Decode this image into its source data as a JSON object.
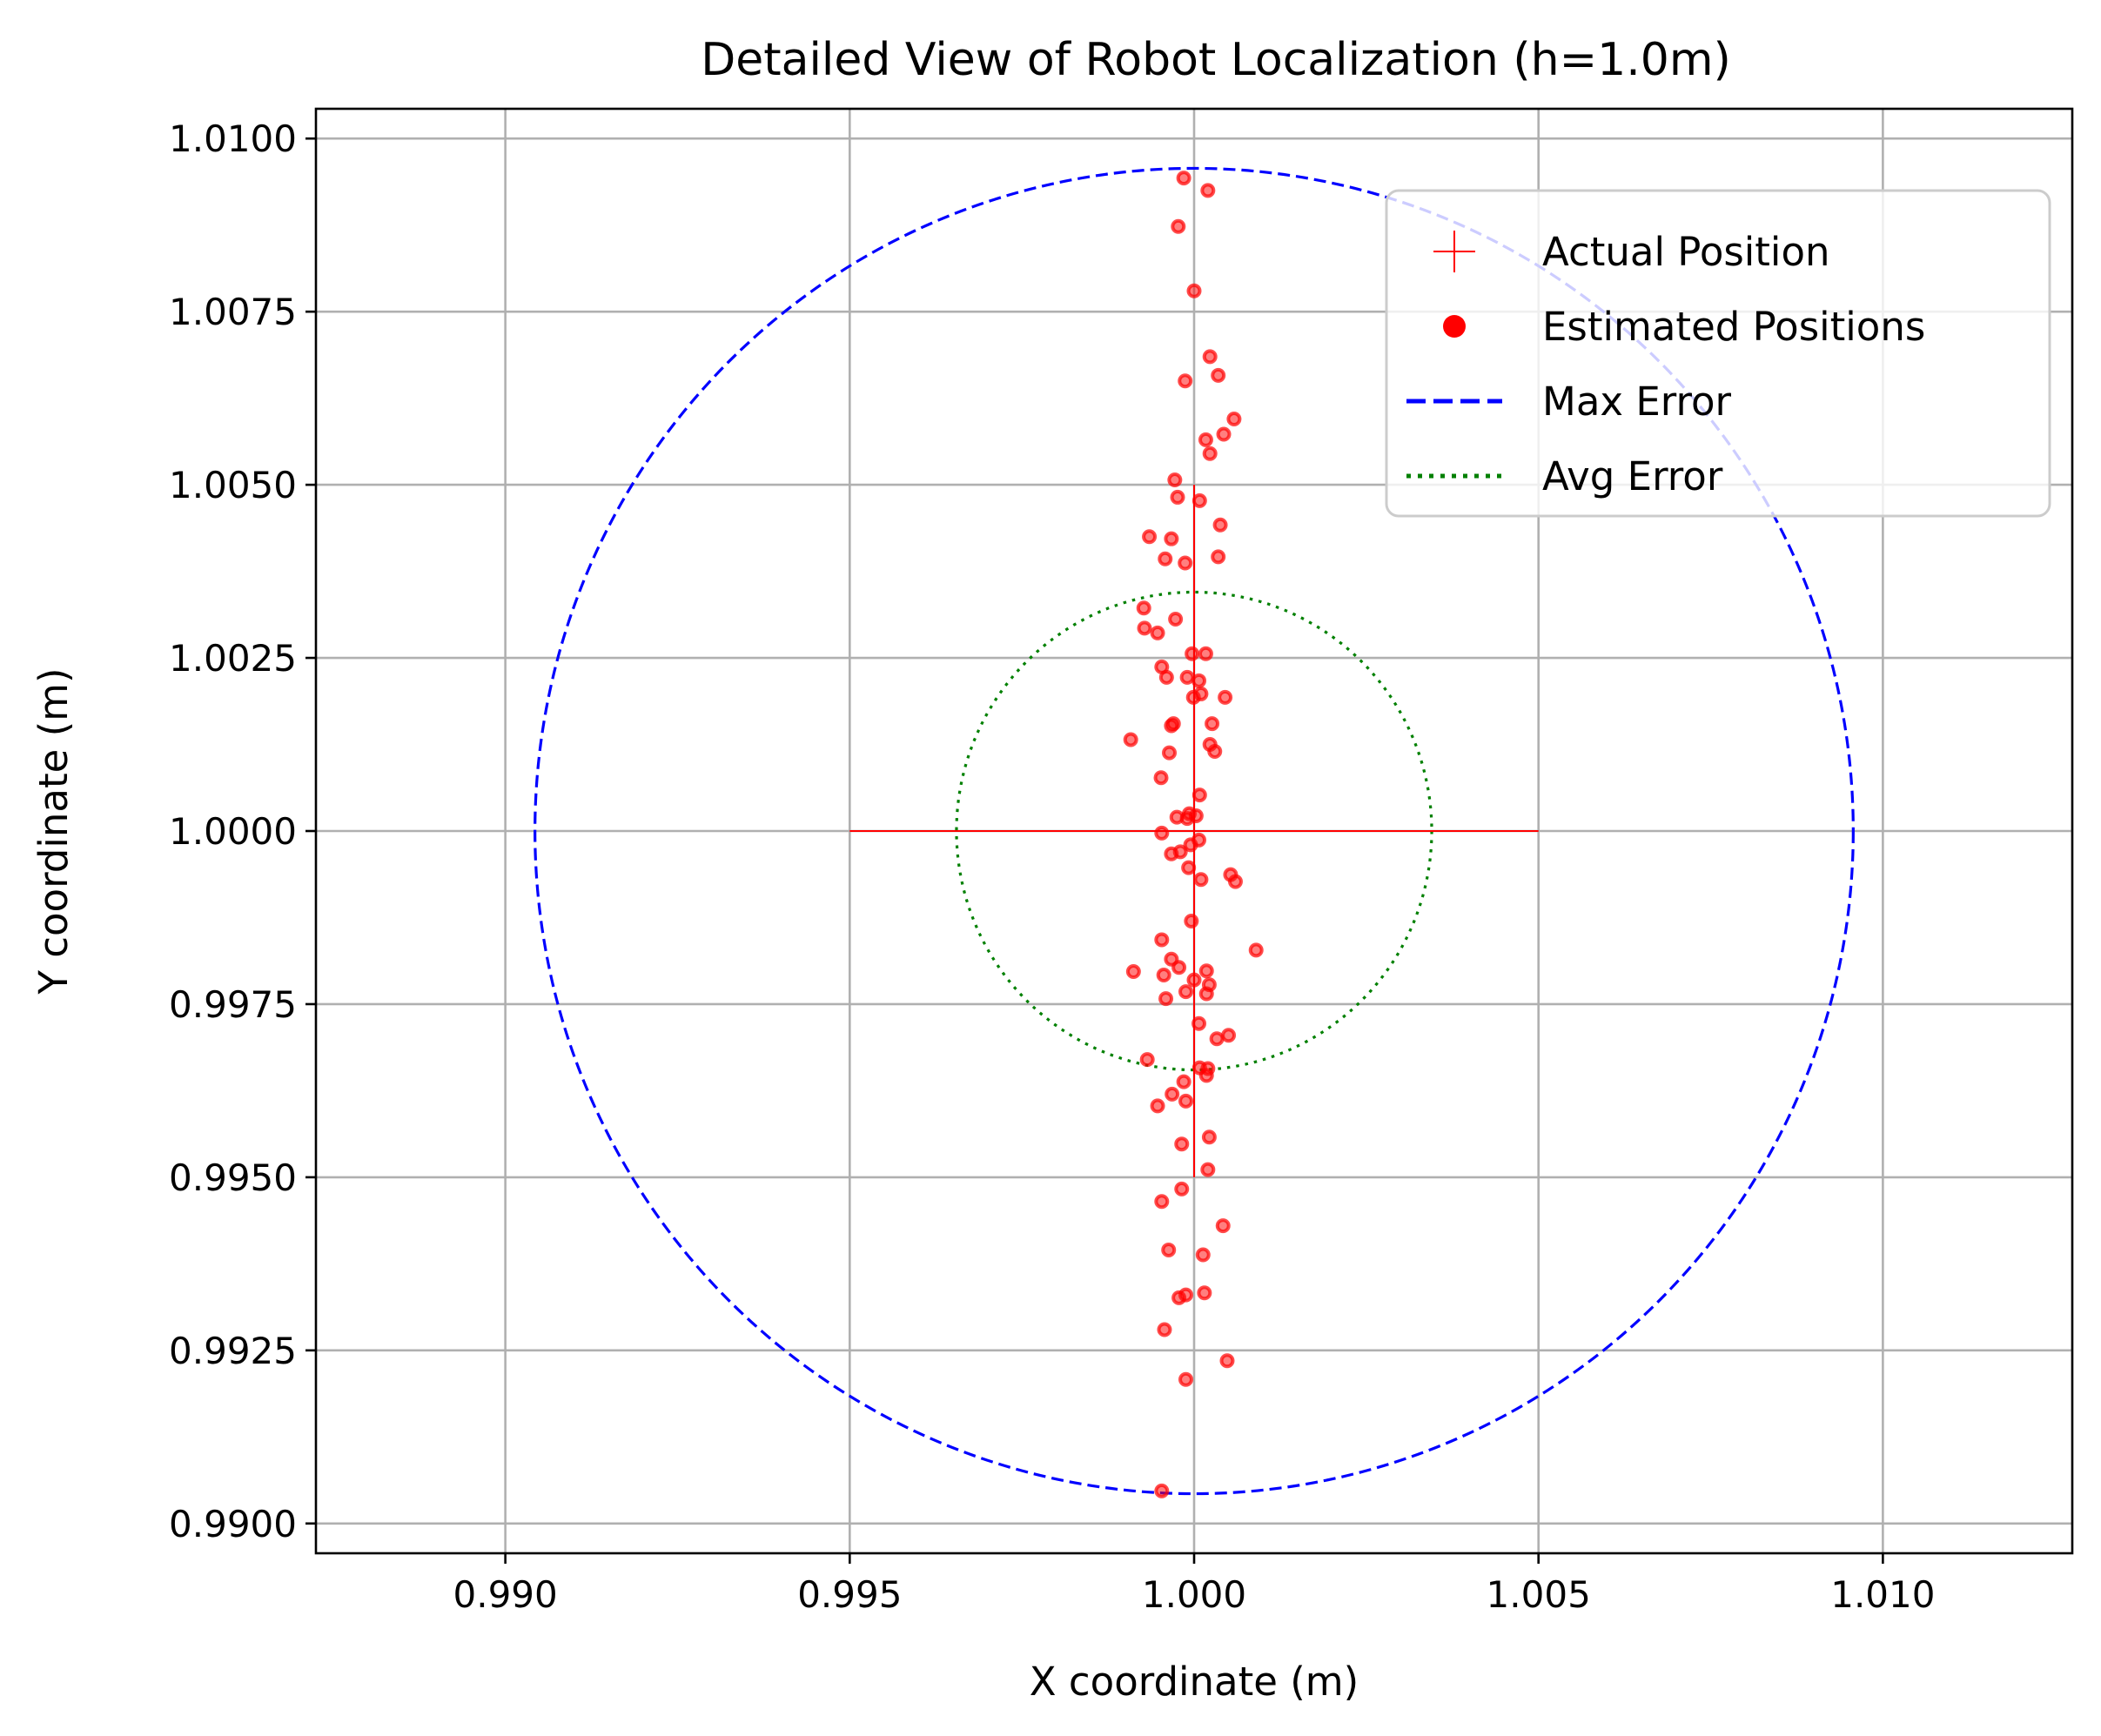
{
  "chart_data": {
    "type": "scatter",
    "title": "Detailed View of Robot Localization (h=1.0m)",
    "xlabel": "X coordinate (m)",
    "ylabel": "Y coordinate (m)",
    "xlim": [
      0.98725,
      1.01275
    ],
    "ylim": [
      0.98957,
      1.01043
    ],
    "xticks": [
      0.99,
      0.995,
      1.0,
      1.005,
      1.01
    ],
    "xtick_labels": [
      "0.990",
      "0.995",
      "1.000",
      "1.005",
      "1.010"
    ],
    "yticks": [
      0.99,
      0.9925,
      0.995,
      0.9975,
      1.0,
      1.0025,
      1.005,
      1.0075,
      1.01
    ],
    "ytick_labels": [
      "0.9900",
      "0.9925",
      "0.9950",
      "0.9975",
      "1.0000",
      "1.0025",
      "1.0050",
      "1.0075",
      "1.0100"
    ],
    "grid": true,
    "legend_position": "top-right",
    "legend": [
      "Actual Position",
      "Estimated Positions",
      "Max Error",
      "Avg Error"
    ],
    "actual_position": {
      "x": 1.0,
      "y": 1.0,
      "color": "#ff0000"
    },
    "max_error": {
      "center": [
        1.0,
        1.0
      ],
      "radius": 0.00957,
      "color": "#0000ff",
      "style": "dashed"
    },
    "avg_error": {
      "center": [
        1.0,
        1.0
      ],
      "radius": 0.00345,
      "color": "#008000",
      "style": "dotted"
    },
    "estimated_color": "#ff0000",
    "estimated_positions": [
      [
        0.99985,
        1.00943
      ],
      [
        1.0002,
        1.00925
      ],
      [
        0.99977,
        1.00873
      ],
      [
        1.0,
        1.0078
      ],
      [
        1.00023,
        1.00685
      ],
      [
        1.00035,
        1.00658
      ],
      [
        0.99987,
        1.0065
      ],
      [
        1.00058,
        1.00595
      ],
      [
        1.00043,
        1.00573
      ],
      [
        1.00017,
        1.00565
      ],
      [
        1.00023,
        1.00545
      ],
      [
        0.99972,
        1.00507
      ],
      [
        0.99976,
        1.00482
      ],
      [
        1.00008,
        1.00477
      ],
      [
        0.99935,
        1.00425
      ],
      [
        0.99967,
        1.00422
      ],
      [
        1.00038,
        1.00442
      ],
      [
        0.99958,
        1.00393
      ],
      [
        0.99987,
        1.00387
      ],
      [
        1.00035,
        1.00396
      ],
      [
        0.99927,
        1.00322
      ],
      [
        0.99973,
        1.00306
      ],
      [
        0.99928,
        1.00293
      ],
      [
        0.99947,
        1.00286
      ],
      [
        0.99953,
        1.00237
      ],
      [
        0.99997,
        1.00256
      ],
      [
        1.00017,
        1.00256
      ],
      [
        0.9996,
        1.00222
      ],
      [
        0.9999,
        1.00222
      ],
      [
        1.00007,
        1.00217
      ],
      [
        1.0001,
        1.00198
      ],
      [
        0.99999,
        1.00193
      ],
      [
        1.00045,
        1.00193
      ],
      [
        0.99967,
        1.00152
      ],
      [
        0.9997,
        1.00155
      ],
      [
        1.00026,
        1.00155
      ],
      [
        0.99908,
        1.00132
      ],
      [
        1.00023,
        1.00125
      ],
      [
        1.0003,
        1.00115
      ],
      [
        0.99964,
        1.00113
      ],
      [
        0.99952,
        1.00077
      ],
      [
        1.00008,
        1.00052
      ],
      [
        0.99975,
        1.0002
      ],
      [
        0.99993,
        1.00025
      ],
      [
        1.00003,
        1.00022
      ],
      [
        0.9999,
        1.00018
      ],
      [
        0.99953,
        0.99997
      ],
      [
        1.00007,
        0.99987
      ],
      [
        0.99995,
        0.9998
      ],
      [
        0.99967,
        0.99967
      ],
      [
        0.9998,
        0.9997
      ],
      [
        0.99992,
        0.99947
      ],
      [
        1.00053,
        0.99937
      ],
      [
        1.0006,
        0.99927
      ],
      [
        1.0001,
        0.9993
      ],
      [
        0.99996,
        0.9987
      ],
      [
        0.99953,
        0.99843
      ],
      [
        1.0009,
        0.99828
      ],
      [
        0.99967,
        0.99815
      ],
      [
        0.99978,
        0.99803
      ],
      [
        0.99912,
        0.99797
      ],
      [
        1.00018,
        0.99798
      ],
      [
        0.99956,
        0.99792
      ],
      [
        1.0,
        0.99785
      ],
      [
        1.00022,
        0.99778
      ],
      [
        0.99988,
        0.99768
      ],
      [
        1.00018,
        0.99765
      ],
      [
        0.99959,
        0.99758
      ],
      [
        1.00007,
        0.99722
      ],
      [
        1.00033,
        0.997
      ],
      [
        1.0005,
        0.99705
      ],
      [
        0.99932,
        0.9967
      ],
      [
        1.00008,
        0.99658
      ],
      [
        1.0002,
        0.99657
      ],
      [
        1.00018,
        0.99647
      ],
      [
        0.99985,
        0.99638
      ],
      [
        0.99968,
        0.9962
      ],
      [
        0.99947,
        0.99603
      ],
      [
        0.99988,
        0.9961
      ],
      [
        0.99982,
        0.99548
      ],
      [
        1.00022,
        0.99558
      ],
      [
        1.0002,
        0.99511
      ],
      [
        0.99982,
        0.99483
      ],
      [
        0.99953,
        0.99465
      ],
      [
        1.00042,
        0.9943
      ],
      [
        0.99963,
        0.99395
      ],
      [
        1.00013,
        0.99388
      ],
      [
        0.99978,
        0.99326
      ],
      [
        0.99988,
        0.9933
      ],
      [
        1.00015,
        0.99333
      ],
      [
        0.99957,
        0.9928
      ],
      [
        1.00048,
        0.99235
      ],
      [
        0.99988,
        0.99208
      ],
      [
        0.99953,
        0.99047
      ]
    ]
  }
}
